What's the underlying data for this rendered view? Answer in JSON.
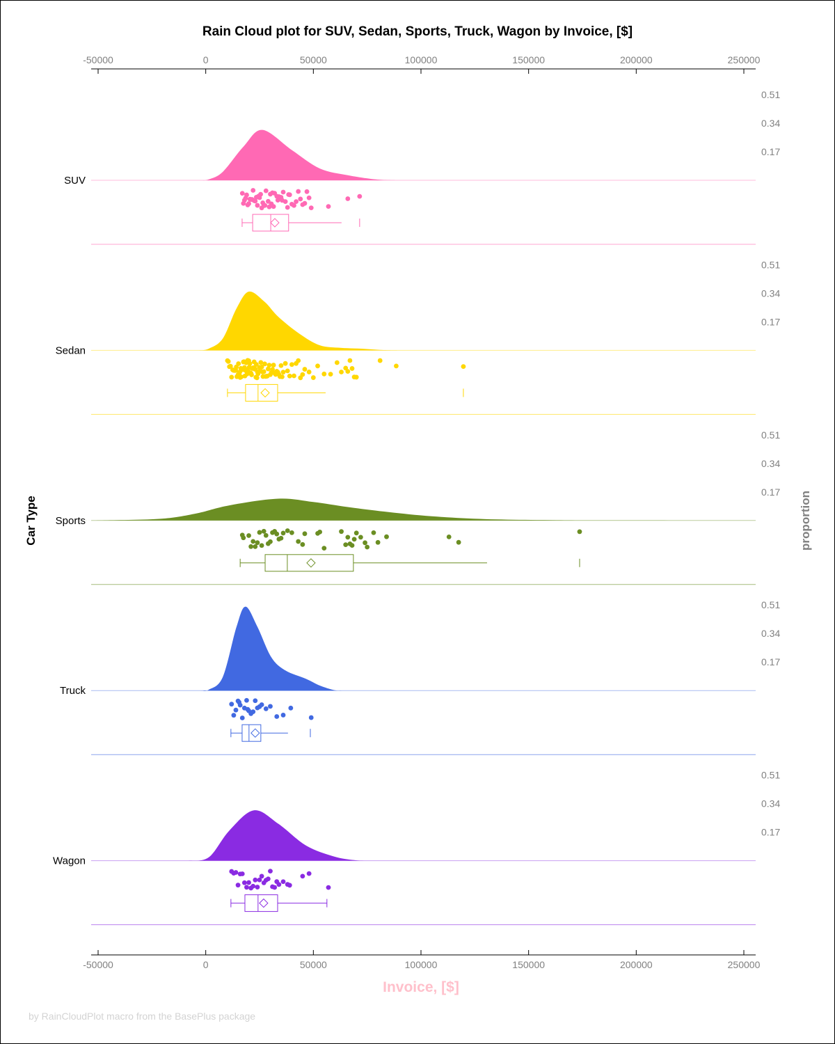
{
  "chart_data": {
    "type": "raincloud",
    "title": "Rain Cloud plot for SUV, Sedan, Sports, Truck, Wagon by Invoice, [$]",
    "xlabel": "Invoice, [$]",
    "ylabel": "Car Type",
    "y2label": "proportion",
    "footnote": "by RainCloudPlot macro from the BasePlus package",
    "xlim": [
      -53000,
      255000
    ],
    "xticks": [
      "-50000",
      "0",
      "50000",
      "100000",
      "150000",
      "200000",
      "250000"
    ],
    "xtick_values": [
      -50000,
      0,
      50000,
      100000,
      150000,
      200000,
      250000
    ],
    "density_ticks": [
      "0.17",
      "0.34",
      "0.51"
    ],
    "density_tick_values": [
      0.17,
      0.34,
      0.51
    ],
    "grid": false,
    "series": [
      {
        "name": "SUV",
        "color": "#ff69b4",
        "box": {
          "min": 16900,
          "q1": 21800,
          "median": 30200,
          "mean": 32100,
          "q3": 38500,
          "whisker_high": 63100,
          "max": 71500
        },
        "density": {
          "x": [
            -2000,
            1400,
            7900,
            17500,
            26300,
            40000,
            53000,
            66000,
            79000,
            88000
          ],
          "y": [
            0,
            0.005,
            0.05,
            0.2,
            0.3,
            0.18,
            0.07,
            0.03,
            0.005,
            0
          ]
        },
        "points": [
          17000,
          17500,
          18000,
          18500,
          19000,
          19500,
          20000,
          20500,
          21000,
          21500,
          22000,
          22500,
          23000,
          23500,
          24000,
          24500,
          25000,
          25500,
          26000,
          26500,
          27000,
          27500,
          28000,
          29000,
          29500,
          30000,
          30500,
          31000,
          31500,
          32000,
          33000,
          33500,
          34000,
          35000,
          35500,
          36000,
          37000,
          38000,
          38500,
          39000,
          40000,
          41000,
          42000,
          43000,
          44000,
          45000,
          46000,
          47000,
          48000,
          49000,
          57000,
          66000,
          71500
        ]
      },
      {
        "name": "Sedan",
        "color": "#ffd700",
        "box": {
          "min": 10100,
          "q1": 18500,
          "median": 24300,
          "mean": 27600,
          "q3": 33400,
          "whisker_high": 55700,
          "max": 119700
        },
        "density": {
          "x": [
            -3000,
            1400,
            7900,
            14300,
            20000,
            27300,
            33700,
            43400,
            53000,
            62700,
            72500,
            82000,
            90000
          ],
          "y": [
            0,
            0.01,
            0.07,
            0.25,
            0.35,
            0.29,
            0.2,
            0.1,
            0.03,
            0.015,
            0.01,
            0.002,
            0
          ]
        },
        "points": [
          10100,
          10500,
          11000,
          11500,
          12000,
          12500,
          13000,
          13200,
          13500,
          14000,
          14200,
          14500,
          15000,
          15200,
          15500,
          15800,
          16000,
          16300,
          16500,
          16800,
          17000,
          17200,
          17500,
          17800,
          18000,
          18200,
          18500,
          18800,
          19000,
          19200,
          19500,
          19800,
          20000,
          20200,
          20500,
          20800,
          21000,
          21300,
          21500,
          21800,
          22000,
          22300,
          22500,
          22800,
          23000,
          23300,
          23500,
          23800,
          24000,
          24300,
          24600,
          25000,
          25300,
          25600,
          26000,
          26300,
          26600,
          27000,
          27400,
          27800,
          28200,
          28600,
          29000,
          29500,
          30000,
          30500,
          31000,
          31500,
          32000,
          32500,
          33000,
          33500,
          34000,
          34500,
          35000,
          35500,
          36000,
          37000,
          38000,
          39000,
          40000,
          41000,
          42000,
          43000,
          44000,
          45000,
          46000,
          48000,
          50000,
          52000,
          55000,
          58000,
          61000,
          63000,
          65000,
          66000,
          67000,
          68000,
          69000,
          70000,
          81000,
          88500,
          119700
        ]
      },
      {
        "name": "Sports",
        "color": "#6b8e23",
        "box": {
          "min": 16000,
          "q1": 27600,
          "median": 37900,
          "mean": 48900,
          "q3": 68600,
          "whisker_high": 130700,
          "max": 173700
        },
        "density": {
          "x": [
            -60000,
            -47000,
            -21000,
            -5000,
            11000,
            33700,
            50000,
            66000,
            85000,
            105000,
            130000,
            163000,
            195000,
            255000
          ],
          "y": [
            0,
            0.001,
            0.01,
            0.04,
            0.09,
            0.13,
            0.11,
            0.08,
            0.05,
            0.025,
            0.008,
            0.002,
            0.0005,
            0
          ]
        },
        "points": [
          17000,
          17500,
          20000,
          21000,
          22000,
          23000,
          24000,
          25000,
          26000,
          27000,
          28000,
          29000,
          30000,
          31000,
          32000,
          33000,
          34000,
          35000,
          36000,
          38000,
          40000,
          43000,
          45000,
          46000,
          52000,
          53000,
          55000,
          63000,
          65000,
          66000,
          67000,
          68000,
          69000,
          70000,
          72000,
          74000,
          75000,
          78000,
          80000,
          84000,
          113000,
          117500,
          173700
        ]
      },
      {
        "name": "Truck",
        "color": "#4169e1",
        "box": {
          "min": 11700,
          "q1": 16900,
          "median": 20100,
          "mean": 23000,
          "q3": 25600,
          "whisker_high": 38200,
          "max": 48600
        },
        "density": {
          "x": [
            -2000,
            1400,
            7900,
            14300,
            18500,
            24000,
            30400,
            37000,
            46600,
            53000,
            59600,
            63000
          ],
          "y": [
            0,
            0.005,
            0.08,
            0.38,
            0.5,
            0.38,
            0.2,
            0.12,
            0.07,
            0.03,
            0.003,
            0
          ]
        },
        "points": [
          12000,
          13000,
          14000,
          15000,
          15500,
          16000,
          17000,
          18000,
          19000,
          19500,
          20000,
          21000,
          22000,
          23000,
          24000,
          25000,
          26000,
          28000,
          30000,
          33000,
          36000,
          39500,
          49000
        ]
      },
      {
        "name": "Wagon",
        "color": "#8a2be2",
        "box": {
          "min": 11700,
          "q1": 18200,
          "median": 24300,
          "mean": 26900,
          "q3": 33400,
          "whisker_high": 56300,
          "max": 56300
        },
        "density": {
          "x": [
            -8000,
            1400,
            11000,
            22400,
            33700,
            46600,
            59600,
            69300,
            75000
          ],
          "y": [
            0,
            0.02,
            0.18,
            0.3,
            0.22,
            0.09,
            0.025,
            0.003,
            0
          ]
        },
        "points": [
          12000,
          13000,
          14000,
          15000,
          16000,
          17000,
          18000,
          19000,
          20000,
          21000,
          22000,
          23000,
          24000,
          25000,
          26000,
          27000,
          28000,
          29000,
          30000,
          31000,
          32000,
          33000,
          34000,
          36000,
          38000,
          39000,
          45000,
          48000,
          57000
        ]
      }
    ]
  }
}
